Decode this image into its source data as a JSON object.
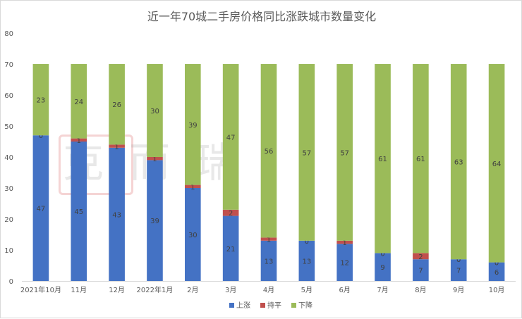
{
  "chart_data": {
    "type": "bar",
    "stacked": true,
    "title": "近一年70城二手房价格同比涨跌城市数量变化",
    "categories": [
      "2021年10月",
      "11月",
      "12月",
      "2022年1月",
      "2月",
      "3月",
      "4月",
      "5月",
      "6月",
      "7月",
      "8月",
      "9月",
      "10月"
    ],
    "series": [
      {
        "name": "上涨",
        "color": "#4472c4",
        "values": [
          47,
          45,
          43,
          39,
          30,
          21,
          13,
          13,
          12,
          9,
          7,
          7,
          6
        ]
      },
      {
        "name": "持平",
        "color": "#c0504d",
        "values": [
          0,
          1,
          1,
          1,
          1,
          2,
          1,
          0,
          1,
          0,
          2,
          0,
          0
        ]
      },
      {
        "name": "下降",
        "color": "#9bbb59",
        "values": [
          23,
          24,
          26,
          30,
          39,
          47,
          56,
          57,
          57,
          61,
          61,
          63,
          64
        ]
      }
    ],
    "ylim": [
      0,
      80
    ],
    "yticks": [
      0,
      10,
      20,
      30,
      40,
      50,
      60,
      70,
      80
    ],
    "grid": false,
    "legend": "bottom",
    "watermark": "克而瑞"
  }
}
